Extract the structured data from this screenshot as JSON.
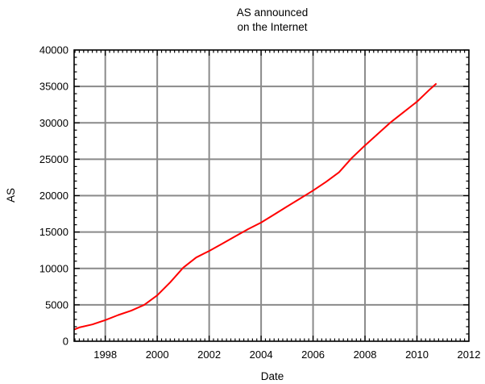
{
  "chart_data": {
    "type": "line",
    "title": [
      "AS announced",
      "on the Internet"
    ],
    "xlabel": "Date",
    "ylabel": "AS",
    "xlim": [
      1996.8,
      2012
    ],
    "ylim": [
      0,
      40000
    ],
    "x_ticks": [
      1998,
      2000,
      2002,
      2004,
      2006,
      2008,
      2010,
      2012
    ],
    "y_ticks": [
      0,
      5000,
      10000,
      15000,
      20000,
      25000,
      30000,
      35000,
      40000
    ],
    "grid": true,
    "series": [
      {
        "color": "#ff0000",
        "x": [
          1996.8,
          1997.0,
          1997.5,
          1998.0,
          1998.5,
          1999.0,
          1999.5,
          2000.0,
          2000.5,
          2001.0,
          2001.5,
          2002.0,
          2002.5,
          2003.0,
          2003.5,
          2004.0,
          2004.5,
          2005.0,
          2005.5,
          2006.0,
          2006.5,
          2007.0,
          2007.5,
          2008.0,
          2008.5,
          2009.0,
          2009.5,
          2010.0,
          2010.5,
          2010.75
        ],
        "y": [
          1600,
          1900,
          2300,
          2900,
          3600,
          4200,
          5000,
          6300,
          8100,
          10100,
          11500,
          12400,
          13400,
          14400,
          15400,
          16300,
          17400,
          18500,
          19600,
          20700,
          21900,
          23200,
          25200,
          26900,
          28500,
          30100,
          31500,
          32900,
          34600,
          35400
        ]
      }
    ]
  }
}
